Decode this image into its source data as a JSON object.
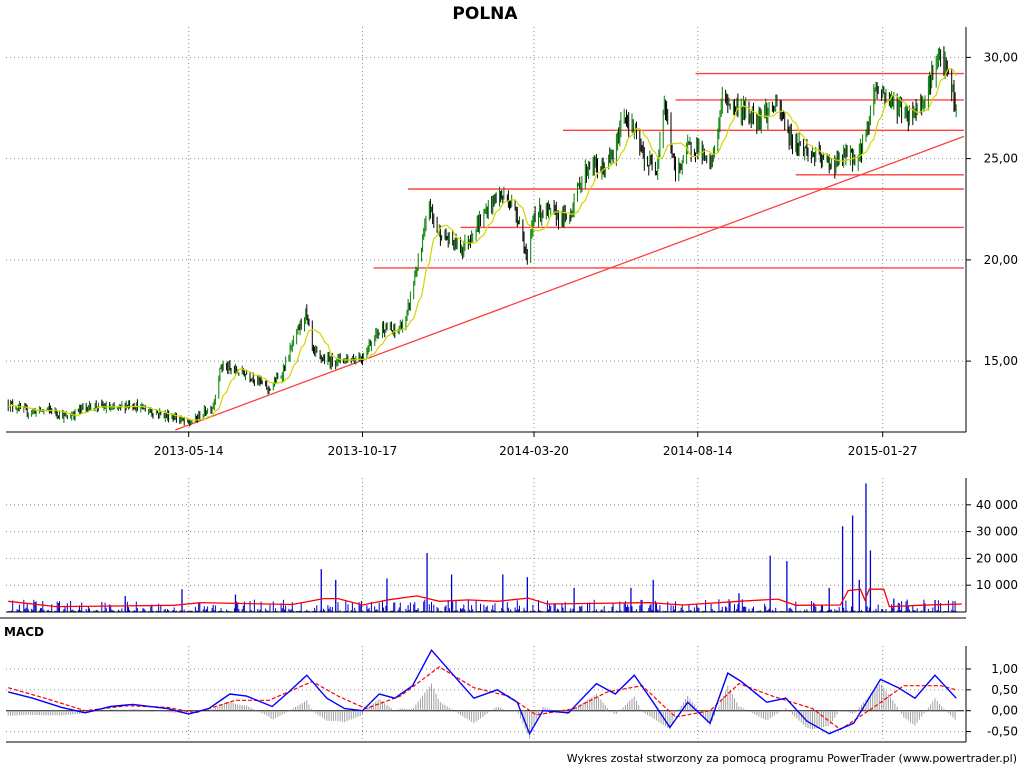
{
  "chart_data": {
    "type": "candlestick",
    "title": "POLNA",
    "footer": "Wykres został stworzony za pomocą programu PowerTrader (www.powertrader.pl)",
    "x_ticks": [
      "2013-05-14",
      "2013-10-17",
      "2014-03-20",
      "2014-08-14",
      "2015-01-27"
    ],
    "x_range": [
      "2012-12-01",
      "2015-04-10"
    ],
    "price": {
      "y_ticks": [
        "15,00",
        "20,00",
        "25,00",
        "30,00"
      ],
      "ylim": [
        11.5,
        31.5
      ],
      "close_path": [
        [
          "2012-12-03",
          12.9
        ],
        [
          "2012-12-20",
          12.5
        ],
        [
          "2013-01-10",
          12.6
        ],
        [
          "2013-01-25",
          12.2
        ],
        [
          "2013-02-08",
          12.7
        ],
        [
          "2013-02-22",
          12.8
        ],
        [
          "2013-03-08",
          12.6
        ],
        [
          "2013-03-22",
          12.9
        ],
        [
          "2013-04-05",
          12.6
        ],
        [
          "2013-04-19",
          12.4
        ],
        [
          "2013-05-03",
          12.2
        ],
        [
          "2013-05-14",
          11.9
        ],
        [
          "2013-05-24",
          12.3
        ],
        [
          "2013-06-05",
          12.8
        ],
        [
          "2013-06-12",
          14.8
        ],
        [
          "2013-06-19",
          14.6
        ],
        [
          "2013-07-03",
          14.4
        ],
        [
          "2013-07-15",
          14.1
        ],
        [
          "2013-07-24",
          13.6
        ],
        [
          "2013-08-05",
          14.3
        ],
        [
          "2013-08-20",
          16.5
        ],
        [
          "2013-08-27",
          17.4
        ],
        [
          "2013-09-03",
          15.4
        ],
        [
          "2013-09-15",
          15.0
        ],
        [
          "2013-09-25",
          15.1
        ],
        [
          "2013-10-05",
          15.1
        ],
        [
          "2013-10-17",
          15.2
        ],
        [
          "2013-10-27",
          16.2
        ],
        [
          "2013-11-05",
          16.7
        ],
        [
          "2013-11-15",
          16.4
        ],
        [
          "2013-11-25",
          17.0
        ],
        [
          "2013-12-02",
          19.0
        ],
        [
          "2013-12-09",
          20.5
        ],
        [
          "2013-12-16",
          22.8
        ],
        [
          "2013-12-22",
          21.5
        ],
        [
          "2014-01-02",
          21.0
        ],
        [
          "2014-01-15",
          20.6
        ],
        [
          "2014-01-25",
          21.4
        ],
        [
          "2014-02-05",
          22.4
        ],
        [
          "2014-02-15",
          23.2
        ],
        [
          "2014-02-25",
          23.0
        ],
        [
          "2014-03-07",
          22.0
        ],
        [
          "2014-03-14",
          19.8
        ],
        [
          "2014-03-20",
          22.3
        ],
        [
          "2014-04-01",
          22.4
        ],
        [
          "2014-04-10",
          22.2
        ],
        [
          "2014-04-20",
          22.0
        ],
        [
          "2014-04-30",
          23.8
        ],
        [
          "2014-05-10",
          24.8
        ],
        [
          "2014-05-20",
          24.4
        ],
        [
          "2014-06-01",
          25.3
        ],
        [
          "2014-06-08",
          27.3
        ],
        [
          "2014-06-18",
          26.3
        ],
        [
          "2014-06-28",
          24.8
        ],
        [
          "2014-07-08",
          24.6
        ],
        [
          "2014-07-15",
          27.8
        ],
        [
          "2014-07-25",
          24.2
        ],
        [
          "2014-08-05",
          25.5
        ],
        [
          "2014-08-14",
          25.6
        ],
        [
          "2014-08-25",
          24.5
        ],
        [
          "2014-08-31",
          26.0
        ],
        [
          "2014-09-05",
          28.0
        ],
        [
          "2014-09-15",
          27.6
        ],
        [
          "2014-09-25",
          27.3
        ],
        [
          "2014-10-05",
          27.0
        ],
        [
          "2014-10-15",
          27.3
        ],
        [
          "2014-10-25",
          27.6
        ],
        [
          "2014-11-05",
          26.0
        ],
        [
          "2014-11-15",
          25.6
        ],
        [
          "2014-11-25",
          25.2
        ],
        [
          "2014-12-05",
          24.9
        ],
        [
          "2014-12-15",
          24.7
        ],
        [
          "2014-12-25",
          25.2
        ],
        [
          "2015-01-05",
          25.0
        ],
        [
          "2015-01-13",
          26.5
        ],
        [
          "2015-01-20",
          28.5
        ],
        [
          "2015-01-30",
          28.1
        ],
        [
          "2015-02-09",
          27.6
        ],
        [
          "2015-02-19",
          27.1
        ],
        [
          "2015-03-01",
          27.6
        ],
        [
          "2015-03-08",
          28.3
        ],
        [
          "2015-03-14",
          29.6
        ],
        [
          "2015-03-21",
          29.9
        ],
        [
          "2015-03-28",
          29.0
        ],
        [
          "2015-04-03",
          27.3
        ]
      ],
      "horizontal_levels": [
        {
          "value": 29.2,
          "from": "2014-08-12",
          "to": "2015-04-10"
        },
        {
          "value": 27.9,
          "from": "2014-07-25",
          "to": "2015-04-10"
        },
        {
          "value": 26.4,
          "from": "2014-04-15",
          "to": "2015-04-10"
        },
        {
          "value": 24.2,
          "from": "2014-11-10",
          "to": "2015-04-10"
        },
        {
          "value": 23.5,
          "from": "2013-11-27",
          "to": "2015-04-10"
        },
        {
          "value": 21.6,
          "from": "2014-01-13",
          "to": "2015-04-10"
        },
        {
          "value": 19.6,
          "from": "2013-10-27",
          "to": "2015-04-10"
        }
      ],
      "trendline": {
        "from": [
          "2013-05-02",
          11.6
        ],
        "to": [
          "2015-04-10",
          26.1
        ]
      },
      "colors": {
        "line_up": "#008000",
        "line_down": "#000000",
        "ma": "#d4d400",
        "levels": "#ff4040"
      }
    },
    "volume": {
      "y_ticks": [
        "10 000",
        "20 000",
        "30 000",
        "40 000"
      ],
      "ylim": [
        0,
        50000
      ],
      "spikes": [
        [
          "2013-03-18",
          6000
        ],
        [
          "2013-05-08",
          8500
        ],
        [
          "2013-06-25",
          6500
        ],
        [
          "2013-09-10",
          16000
        ],
        [
          "2013-09-23",
          12000
        ],
        [
          "2013-11-08",
          12500
        ],
        [
          "2013-12-14",
          22000
        ],
        [
          "2014-01-05",
          14000
        ],
        [
          "2014-02-20",
          14000
        ],
        [
          "2014-03-14",
          13000
        ],
        [
          "2014-04-25",
          9000
        ],
        [
          "2014-06-15",
          9000
        ],
        [
          "2014-07-05",
          12000
        ],
        [
          "2014-09-20",
          7000
        ],
        [
          "2014-10-18",
          21000
        ],
        [
          "2014-11-02",
          19000
        ],
        [
          "2014-12-10",
          9000
        ],
        [
          "2014-12-22",
          32000
        ],
        [
          "2014-12-31",
          36000
        ],
        [
          "2015-01-06",
          12000
        ],
        [
          "2015-01-12",
          48000
        ],
        [
          "2015-01-16",
          23000
        ],
        [
          "2015-02-06",
          5000
        ],
        [
          "2015-03-15",
          4500
        ]
      ],
      "avg_path": [
        [
          "2012-12-03",
          4000
        ],
        [
          "2013-01-15",
          2000
        ],
        [
          "2013-03-01",
          2200
        ],
        [
          "2013-05-01",
          2500
        ],
        [
          "2013-05-25",
          3500
        ],
        [
          "2013-06-25",
          3200
        ],
        [
          "2013-08-15",
          2800
        ],
        [
          "2013-09-12",
          5000
        ],
        [
          "2013-09-25",
          5000
        ],
        [
          "2013-10-17",
          2600
        ],
        [
          "2013-11-10",
          4600
        ],
        [
          "2013-12-05",
          6000
        ],
        [
          "2013-12-25",
          4000
        ],
        [
          "2014-01-20",
          4500
        ],
        [
          "2014-02-15",
          4000
        ],
        [
          "2014-03-15",
          5200
        ],
        [
          "2014-04-01",
          3000
        ],
        [
          "2014-05-15",
          3200
        ],
        [
          "2014-07-01",
          3500
        ],
        [
          "2014-08-01",
          2600
        ],
        [
          "2014-09-20",
          4000
        ],
        [
          "2014-10-25",
          4800
        ],
        [
          "2014-11-10",
          2500
        ],
        [
          "2014-12-20",
          2600
        ],
        [
          "2014-12-27",
          8000
        ],
        [
          "2015-01-07",
          8500
        ],
        [
          "2015-01-11",
          4500
        ],
        [
          "2015-01-15",
          8500
        ],
        [
          "2015-01-28",
          8500
        ],
        [
          "2015-02-02",
          2000
        ],
        [
          "2015-03-01",
          2500
        ],
        [
          "2015-04-08",
          3000
        ]
      ],
      "colors": {
        "bars": "#0000d0",
        "avg": "#ff0000"
      }
    },
    "macd": {
      "label": "MACD",
      "y_ticks": [
        "-0,50",
        "0,00",
        "0,50",
        "1,00"
      ],
      "ylim": [
        -0.75,
        1.55
      ],
      "macd_path": [
        [
          "2012-12-03",
          0.45
        ],
        [
          "2012-12-25",
          0.3
        ],
        [
          "2013-01-20",
          0.08
        ],
        [
          "2013-02-10",
          -0.05
        ],
        [
          "2013-03-05",
          0.1
        ],
        [
          "2013-03-25",
          0.15
        ],
        [
          "2013-04-25",
          0.05
        ],
        [
          "2013-05-14",
          -0.08
        ],
        [
          "2013-06-01",
          0.05
        ],
        [
          "2013-06-20",
          0.4
        ],
        [
          "2013-07-05",
          0.35
        ],
        [
          "2013-07-28",
          0.1
        ],
        [
          "2013-08-12",
          0.45
        ],
        [
          "2013-08-28",
          0.85
        ],
        [
          "2013-09-15",
          0.3
        ],
        [
          "2013-10-01",
          0.05
        ],
        [
          "2013-10-17",
          0.0
        ],
        [
          "2013-11-01",
          0.4
        ],
        [
          "2013-11-15",
          0.3
        ],
        [
          "2013-12-01",
          0.6
        ],
        [
          "2013-12-18",
          1.45
        ],
        [
          "2014-01-05",
          0.9
        ],
        [
          "2014-01-25",
          0.3
        ],
        [
          "2014-02-15",
          0.5
        ],
        [
          "2014-03-05",
          0.2
        ],
        [
          "2014-03-16",
          -0.55
        ],
        [
          "2014-03-28",
          0.0
        ],
        [
          "2014-04-20",
          -0.05
        ],
        [
          "2014-05-15",
          0.65
        ],
        [
          "2014-06-01",
          0.4
        ],
        [
          "2014-06-18",
          0.85
        ],
        [
          "2014-07-05",
          0.2
        ],
        [
          "2014-07-20",
          -0.4
        ],
        [
          "2014-08-05",
          0.2
        ],
        [
          "2014-08-25",
          -0.3
        ],
        [
          "2014-09-10",
          0.9
        ],
        [
          "2014-09-22",
          0.7
        ],
        [
          "2014-10-15",
          0.2
        ],
        [
          "2014-11-01",
          0.3
        ],
        [
          "2014-11-20",
          -0.25
        ],
        [
          "2014-12-10",
          -0.55
        ],
        [
          "2015-01-01",
          -0.3
        ],
        [
          "2015-01-25",
          0.75
        ],
        [
          "2015-02-10",
          0.55
        ],
        [
          "2015-02-25",
          0.3
        ],
        [
          "2015-03-15",
          0.85
        ],
        [
          "2015-04-03",
          0.3
        ]
      ],
      "signal_path": [
        [
          "2012-12-03",
          0.55
        ],
        [
          "2013-01-05",
          0.3
        ],
        [
          "2013-02-10",
          0.0
        ],
        [
          "2013-03-20",
          0.12
        ],
        [
          "2013-04-25",
          0.08
        ],
        [
          "2013-05-20",
          -0.05
        ],
        [
          "2013-06-25",
          0.25
        ],
        [
          "2013-07-25",
          0.25
        ],
        [
          "2013-09-02",
          0.7
        ],
        [
          "2013-09-25",
          0.35
        ],
        [
          "2013-10-20",
          0.05
        ],
        [
          "2013-11-20",
          0.35
        ],
        [
          "2013-12-25",
          1.05
        ],
        [
          "2014-01-25",
          0.55
        ],
        [
          "2014-02-25",
          0.35
        ],
        [
          "2014-03-22",
          -0.1
        ],
        [
          "2014-04-25",
          0.05
        ],
        [
          "2014-05-25",
          0.45
        ],
        [
          "2014-06-25",
          0.6
        ],
        [
          "2014-07-25",
          -0.15
        ],
        [
          "2014-08-25",
          0.0
        ],
        [
          "2014-09-20",
          0.65
        ],
        [
          "2014-10-20",
          0.35
        ],
        [
          "2014-11-25",
          0.05
        ],
        [
          "2014-12-20",
          -0.45
        ],
        [
          "2015-01-20",
          0.1
        ],
        [
          "2015-02-15",
          0.6
        ],
        [
          "2015-03-20",
          0.6
        ],
        [
          "2015-04-03",
          0.5
        ]
      ],
      "colors": {
        "macd": "#0000ff",
        "signal": "#ff0000",
        "hist": "#a0a0a0"
      }
    }
  }
}
